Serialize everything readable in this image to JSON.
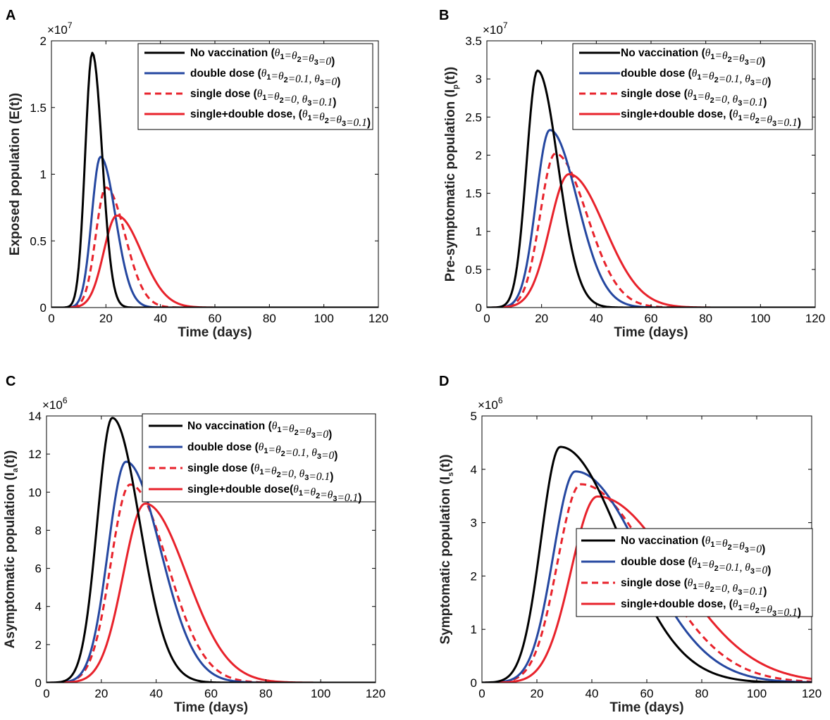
{
  "colors": {
    "black": "#000000",
    "blue": "#2547a0",
    "red": "#e8222b"
  },
  "legend": [
    {
      "key": "no_vacc",
      "label": "No vaccination",
      "color": "#000000",
      "dash": false,
      "math": [
        [
          "θ",
          "1"
        ],
        [
          "=θ",
          "2"
        ],
        [
          "=θ",
          "3"
        ],
        [
          "=0",
          ""
        ]
      ]
    },
    {
      "key": "double",
      "label": "double dose",
      "color": "#2547a0",
      "dash": false,
      "math": [
        [
          "θ",
          "1"
        ],
        [
          "=θ",
          "2"
        ],
        [
          "=0.1, θ",
          "3"
        ],
        [
          "=0",
          ""
        ]
      ]
    },
    {
      "key": "single",
      "label": "single dose",
      "color": "#e8222b",
      "dash": true,
      "math": [
        [
          "θ",
          "1"
        ],
        [
          "=θ",
          "2"
        ],
        [
          "=0, θ",
          "3"
        ],
        [
          "=0.1",
          ""
        ]
      ]
    },
    {
      "key": "both",
      "label": "single+double dose,",
      "label_c": "single+double dose",
      "color": "#e8222b",
      "dash": false,
      "math": [
        [
          "θ",
          "1"
        ],
        [
          "=θ",
          "2"
        ],
        [
          "=θ",
          "3"
        ],
        [
          "=0.1",
          ""
        ]
      ]
    }
  ],
  "chart_data": [
    {
      "panel": "A",
      "type": "line",
      "title": "",
      "xlabel": "Time (days)",
      "ylabel": "Exposed population (E(t))",
      "ylabel_parts": [
        "Exposed population (E(t))",
        ""
      ],
      "exponent": "7",
      "xlim": [
        0,
        120
      ],
      "ylim": [
        0,
        2
      ],
      "xticks": [
        0,
        20,
        40,
        60,
        80,
        100,
        120
      ],
      "yticks": [
        0,
        0.5,
        1,
        1.5,
        2
      ],
      "ytick_labels": [
        "0",
        "0.5",
        "1",
        "1.5",
        "2"
      ],
      "legend_position": "top-right",
      "series": [
        {
          "name": "No vaccination",
          "peak_day": 15,
          "peak": 1.91,
          "rise": 2.6,
          "decay": 3.6
        },
        {
          "name": "double dose",
          "peak_day": 18,
          "peak": 1.13,
          "rise": 3.2,
          "decay": 5.5
        },
        {
          "name": "single dose",
          "peak_day": 20,
          "peak": 0.9,
          "rise": 3.7,
          "decay": 7.0
        },
        {
          "name": "single+double dose",
          "peak_day": 24,
          "peak": 0.69,
          "rise": 4.8,
          "decay": 9.0
        }
      ]
    },
    {
      "panel": "B",
      "type": "line",
      "title": "",
      "xlabel": "Time (days)",
      "ylabel": "Pre-symptomatic population (I",
      "ylabel_parts": [
        "Pre-symptomatic population (I",
        "p",
        "(t))"
      ],
      "exponent": "7",
      "xlim": [
        0,
        120
      ],
      "ylim": [
        0,
        3.5
      ],
      "xticks": [
        0,
        20,
        40,
        60,
        80,
        100,
        120
      ],
      "yticks": [
        0,
        0.5,
        1,
        1.5,
        2,
        2.5,
        3,
        3.5
      ],
      "ytick_labels": [
        "0",
        "0.5",
        "1",
        "1.5",
        "2",
        "2.5",
        "3",
        "3.5"
      ],
      "legend_position": "top-right",
      "series": [
        {
          "name": "No vaccination",
          "peak_day": 18.5,
          "peak": 3.11,
          "rise": 4.0,
          "decay": 7.5
        },
        {
          "name": "double dose",
          "peak_day": 23,
          "peak": 2.33,
          "rise": 5.0,
          "decay": 10.0
        },
        {
          "name": "single dose",
          "peak_day": 25,
          "peak": 2.02,
          "rise": 5.5,
          "decay": 11.5
        },
        {
          "name": "single+double dose",
          "peak_day": 30,
          "peak": 1.75,
          "rise": 7.0,
          "decay": 13.0
        }
      ]
    },
    {
      "panel": "C",
      "type": "line",
      "title": "",
      "xlabel": "Time (days)",
      "ylabel": "Asymptomatic population (I",
      "ylabel_parts": [
        "Asymptomatic population (I",
        "a",
        "(t))"
      ],
      "exponent": "6",
      "xlim": [
        0,
        120
      ],
      "ylim": [
        0,
        14
      ],
      "xticks": [
        0,
        20,
        40,
        60,
        80,
        100,
        120
      ],
      "yticks": [
        0,
        2,
        4,
        6,
        8,
        10,
        12,
        14
      ],
      "ytick_labels": [
        "0",
        "2",
        "4",
        "6",
        "8",
        "10",
        "12",
        "14"
      ],
      "legend_position": "top-right",
      "series": [
        {
          "name": "No vaccination",
          "peak_day": 24,
          "peak": 13.9,
          "rise": 5.5,
          "decay": 10.0
        },
        {
          "name": "double dose",
          "peak_day": 29,
          "peak": 11.6,
          "rise": 6.5,
          "decay": 12.5
        },
        {
          "name": "single dose",
          "peak_day": 30.5,
          "peak": 10.4,
          "rise": 7.0,
          "decay": 13.5
        },
        {
          "name": "single+double dose",
          "peak_day": 36,
          "peak": 9.4,
          "rise": 8.0,
          "decay": 15.0
        }
      ]
    },
    {
      "panel": "D",
      "type": "line",
      "title": "",
      "xlabel": "Time (days)",
      "ylabel": "Symptomatic population (I",
      "ylabel_parts": [
        "Symptomatic population (I",
        "s",
        "(t))"
      ],
      "exponent": "6",
      "xlim": [
        0,
        120
      ],
      "ylim": [
        0,
        5
      ],
      "xticks": [
        0,
        20,
        40,
        60,
        80,
        100,
        120
      ],
      "yticks": [
        0,
        1,
        2,
        3,
        4,
        5
      ],
      "ytick_labels": [
        "0",
        "1",
        "2",
        "3",
        "4",
        "5"
      ],
      "legend_position": "middle-right",
      "series": [
        {
          "name": "No vaccination",
          "peak_day": 28.5,
          "peak": 4.42,
          "rise": 7.0,
          "decay": 22.0
        },
        {
          "name": "double dose",
          "peak_day": 34,
          "peak": 3.96,
          "rise": 8.0,
          "decay": 24.0
        },
        {
          "name": "single dose",
          "peak_day": 36,
          "peak": 3.72,
          "rise": 8.5,
          "decay": 26.0
        },
        {
          "name": "single+double dose",
          "peak_day": 42,
          "peak": 3.49,
          "rise": 9.5,
          "decay": 28.0
        }
      ]
    }
  ]
}
